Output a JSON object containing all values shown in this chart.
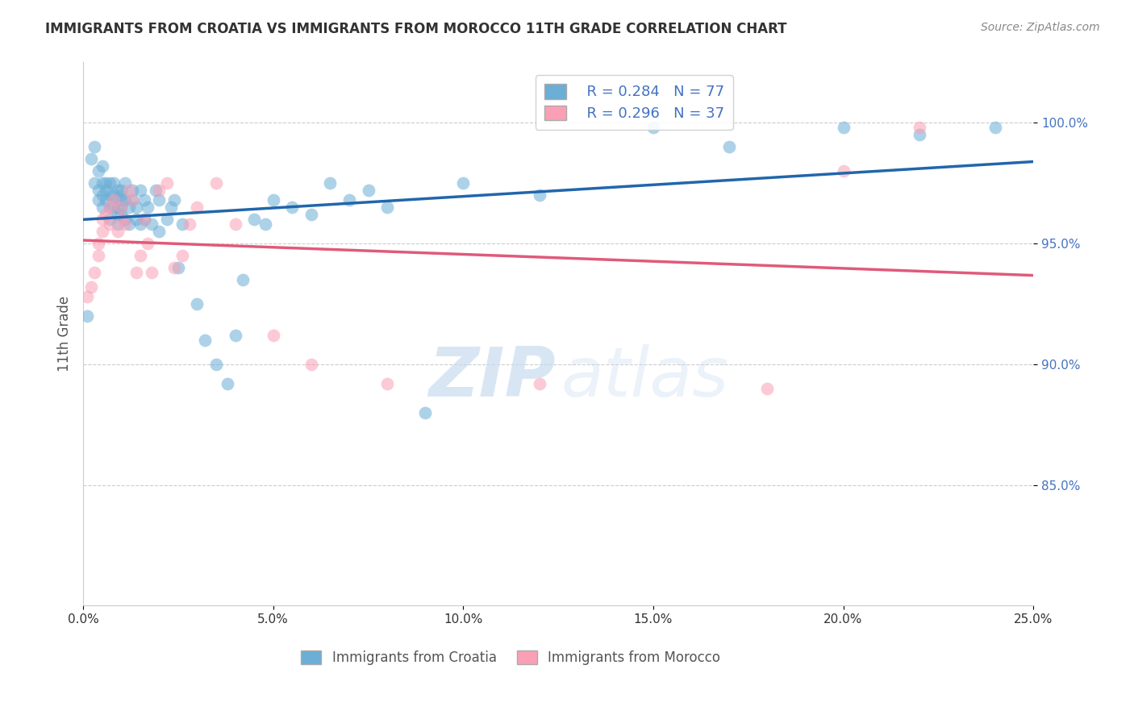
{
  "title": "IMMIGRANTS FROM CROATIA VS IMMIGRANTS FROM MOROCCO 11TH GRADE CORRELATION CHART",
  "source": "Source: ZipAtlas.com",
  "ylabel": "11th Grade",
  "ytick_labels": [
    "100.0%",
    "95.0%",
    "90.0%",
    "85.0%"
  ],
  "ytick_values": [
    1.0,
    0.95,
    0.9,
    0.85
  ],
  "xtick_labels": [
    "0.0%",
    "5.0%",
    "10.0%",
    "15.0%",
    "20.0%",
    "25.0%"
  ],
  "xtick_values": [
    0.0,
    0.05,
    0.1,
    0.15,
    0.2,
    0.25
  ],
  "xmin": 0.0,
  "xmax": 0.25,
  "ymin": 0.8,
  "ymax": 1.025,
  "legend_r_croatia": "R = 0.284",
  "legend_n_croatia": "N = 77",
  "legend_r_morocco": "R = 0.296",
  "legend_n_morocco": "N = 37",
  "legend_label_croatia": "Immigrants from Croatia",
  "legend_label_morocco": "Immigrants from Morocco",
  "blue_color": "#6baed6",
  "blue_line_color": "#2166ac",
  "pink_color": "#fa9fb5",
  "pink_line_color": "#e05a7a",
  "croatia_x": [
    0.001,
    0.002,
    0.003,
    0.003,
    0.004,
    0.004,
    0.004,
    0.005,
    0.005,
    0.005,
    0.005,
    0.006,
    0.006,
    0.006,
    0.007,
    0.007,
    0.007,
    0.007,
    0.008,
    0.008,
    0.008,
    0.008,
    0.009,
    0.009,
    0.009,
    0.009,
    0.01,
    0.01,
    0.01,
    0.01,
    0.01,
    0.011,
    0.011,
    0.011,
    0.012,
    0.012,
    0.013,
    0.013,
    0.014,
    0.014,
    0.015,
    0.015,
    0.016,
    0.016,
    0.017,
    0.018,
    0.019,
    0.02,
    0.02,
    0.022,
    0.023,
    0.024,
    0.025,
    0.026,
    0.03,
    0.032,
    0.035,
    0.038,
    0.04,
    0.042,
    0.045,
    0.048,
    0.05,
    0.055,
    0.06,
    0.065,
    0.07,
    0.075,
    0.08,
    0.09,
    0.1,
    0.12,
    0.15,
    0.17,
    0.2,
    0.22,
    0.24
  ],
  "croatia_y": [
    0.92,
    0.985,
    0.99,
    0.975,
    0.968,
    0.98,
    0.972,
    0.965,
    0.975,
    0.982,
    0.97,
    0.975,
    0.968,
    0.972,
    0.965,
    0.97,
    0.975,
    0.96,
    0.965,
    0.97,
    0.975,
    0.968,
    0.962,
    0.972,
    0.965,
    0.958,
    0.97,
    0.968,
    0.972,
    0.962,
    0.965,
    0.96,
    0.968,
    0.975,
    0.958,
    0.965,
    0.972,
    0.968,
    0.96,
    0.965,
    0.958,
    0.972,
    0.96,
    0.968,
    0.965,
    0.958,
    0.972,
    0.968,
    0.955,
    0.96,
    0.965,
    0.968,
    0.94,
    0.958,
    0.925,
    0.91,
    0.9,
    0.892,
    0.912,
    0.935,
    0.96,
    0.958,
    0.968,
    0.965,
    0.962,
    0.975,
    0.968,
    0.972,
    0.965,
    0.88,
    0.975,
    0.97,
    0.998,
    0.99,
    0.998,
    0.995,
    0.998
  ],
  "morocco_x": [
    0.001,
    0.002,
    0.003,
    0.004,
    0.004,
    0.005,
    0.005,
    0.006,
    0.007,
    0.007,
    0.008,
    0.009,
    0.01,
    0.01,
    0.011,
    0.012,
    0.013,
    0.014,
    0.015,
    0.016,
    0.017,
    0.018,
    0.02,
    0.022,
    0.024,
    0.026,
    0.028,
    0.03,
    0.035,
    0.04,
    0.05,
    0.06,
    0.08,
    0.12,
    0.18,
    0.2,
    0.22
  ],
  "morocco_y": [
    0.928,
    0.932,
    0.938,
    0.945,
    0.95,
    0.955,
    0.96,
    0.962,
    0.958,
    0.965,
    0.968,
    0.955,
    0.96,
    0.965,
    0.958,
    0.972,
    0.968,
    0.938,
    0.945,
    0.96,
    0.95,
    0.938,
    0.972,
    0.975,
    0.94,
    0.945,
    0.958,
    0.965,
    0.975,
    0.958,
    0.912,
    0.9,
    0.892,
    0.892,
    0.89,
    0.98,
    0.998
  ]
}
